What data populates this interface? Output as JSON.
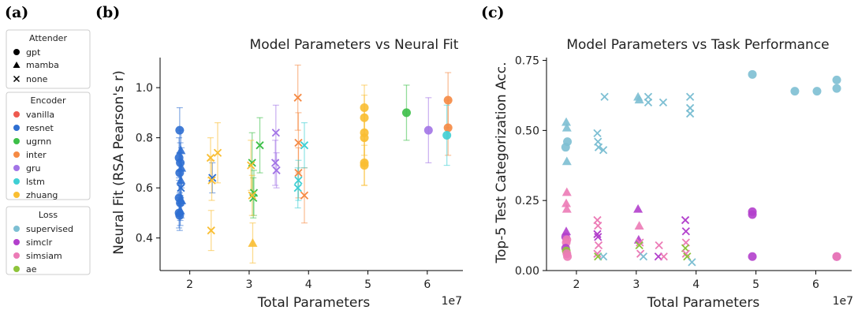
{
  "panel_letters": [
    "(a)",
    "(b)",
    "(c)"
  ],
  "colors": {
    "vanilla": "#ee5a4f",
    "resnet": "#2f6fd1",
    "ugrnn": "#3cbf48",
    "inter": "#f58a44",
    "gru": "#a274e6",
    "lstm": "#3fcfd4",
    "zhuang": "#f9be32",
    "supervised": "#7dbfd3",
    "simclr": "#b23fcc",
    "simsiam": "#ec7bb6",
    "ae": "#8ec43b"
  },
  "legend": {
    "attender": {
      "title": "Attender",
      "items": [
        {
          "label": "gpt",
          "marker": "circle"
        },
        {
          "label": "mamba",
          "marker": "triangle"
        },
        {
          "label": "none",
          "marker": "x"
        }
      ]
    },
    "encoder": {
      "title": "Encoder",
      "items": [
        {
          "label": "vanilla"
        },
        {
          "label": "resnet"
        },
        {
          "label": "ugrnn"
        },
        {
          "label": "inter"
        },
        {
          "label": "gru"
        },
        {
          "label": "lstm"
        },
        {
          "label": "zhuang"
        }
      ]
    },
    "loss": {
      "title": "Loss",
      "items": [
        {
          "label": "supervised"
        },
        {
          "label": "simclr"
        },
        {
          "label": "simsiam"
        },
        {
          "label": "ae"
        }
      ]
    }
  },
  "chart_data": [
    {
      "type": "scatter",
      "title": "Model Parameters vs Neural Fit",
      "xlabel": "Total Parameters",
      "ylabel": "Neural Fit (RSA Pearson's r)",
      "x_scale_label": "1e7",
      "xlim": [
        1.5,
        6.6
      ],
      "ylim": [
        0.27,
        1.12
      ],
      "xticks": [
        2,
        3,
        4,
        5,
        6
      ],
      "yticks": [
        0.4,
        0.6,
        0.8,
        1.0
      ],
      "ytick_labels": [
        "0.4",
        "0.6",
        "0.8",
        "1.0"
      ],
      "points": [
        {
          "x": 1.83,
          "y": 0.83,
          "err": 0.09,
          "encoder": "resnet",
          "marker": "circle"
        },
        {
          "x": 1.82,
          "y": 0.72,
          "err": 0.08,
          "encoder": "resnet",
          "marker": "circle"
        },
        {
          "x": 1.84,
          "y": 0.7,
          "err": 0.08,
          "encoder": "resnet",
          "marker": "circle"
        },
        {
          "x": 1.83,
          "y": 0.66,
          "err": 0.08,
          "encoder": "resnet",
          "marker": "circle"
        },
        {
          "x": 1.82,
          "y": 0.56,
          "err": 0.07,
          "encoder": "resnet",
          "marker": "circle"
        },
        {
          "x": 1.84,
          "y": 0.54,
          "err": 0.07,
          "encoder": "resnet",
          "marker": "circle"
        },
        {
          "x": 1.82,
          "y": 0.5,
          "err": 0.06,
          "encoder": "resnet",
          "marker": "circle"
        },
        {
          "x": 1.83,
          "y": 0.49,
          "err": 0.06,
          "encoder": "resnet",
          "marker": "circle"
        },
        {
          "x": 1.85,
          "y": 0.75,
          "err": 0.08,
          "encoder": "resnet",
          "marker": "triangle"
        },
        {
          "x": 1.86,
          "y": 0.68,
          "err": 0.08,
          "encoder": "resnet",
          "marker": "triangle"
        },
        {
          "x": 1.85,
          "y": 0.63,
          "err": 0.07,
          "encoder": "resnet",
          "marker": "triangle"
        },
        {
          "x": 1.86,
          "y": 0.55,
          "err": 0.07,
          "encoder": "resnet",
          "marker": "triangle"
        },
        {
          "x": 1.84,
          "y": 0.51,
          "err": 0.06,
          "encoder": "resnet",
          "marker": "triangle"
        },
        {
          "x": 1.85,
          "y": 0.6,
          "err": 0.07,
          "encoder": "resnet",
          "marker": "x"
        },
        {
          "x": 2.38,
          "y": 0.64,
          "err": 0.06,
          "encoder": "resnet",
          "marker": "x"
        },
        {
          "x": 2.35,
          "y": 0.72,
          "err": 0.08,
          "encoder": "zhuang",
          "marker": "x"
        },
        {
          "x": 2.37,
          "y": 0.63,
          "err": 0.08,
          "encoder": "zhuang",
          "marker": "x"
        },
        {
          "x": 2.36,
          "y": 0.43,
          "err": 0.08,
          "encoder": "zhuang",
          "marker": "x"
        },
        {
          "x": 2.47,
          "y": 0.74,
          "err": 0.12,
          "encoder": "zhuang",
          "marker": "x"
        },
        {
          "x": 3.05,
          "y": 0.7,
          "err": 0.12,
          "encoder": "ugrnn",
          "marker": "x"
        },
        {
          "x": 3.08,
          "y": 0.58,
          "err": 0.09,
          "encoder": "ugrnn",
          "marker": "x"
        },
        {
          "x": 3.07,
          "y": 0.56,
          "err": 0.08,
          "encoder": "ugrnn",
          "marker": "x"
        },
        {
          "x": 3.18,
          "y": 0.77,
          "err": 0.11,
          "encoder": "ugrnn",
          "marker": "x"
        },
        {
          "x": 3.03,
          "y": 0.69,
          "err": 0.1,
          "encoder": "zhuang",
          "marker": "x"
        },
        {
          "x": 3.05,
          "y": 0.57,
          "err": 0.08,
          "encoder": "zhuang",
          "marker": "x"
        },
        {
          "x": 3.06,
          "y": 0.38,
          "err": 0.08,
          "encoder": "zhuang",
          "marker": "triangle"
        },
        {
          "x": 3.45,
          "y": 0.82,
          "err": 0.11,
          "encoder": "gru",
          "marker": "x"
        },
        {
          "x": 3.44,
          "y": 0.7,
          "err": 0.09,
          "encoder": "gru",
          "marker": "x"
        },
        {
          "x": 3.46,
          "y": 0.67,
          "err": 0.07,
          "encoder": "gru",
          "marker": "x"
        },
        {
          "x": 3.82,
          "y": 0.96,
          "err": 0.13,
          "encoder": "inter",
          "marker": "x"
        },
        {
          "x": 3.83,
          "y": 0.78,
          "err": 0.12,
          "encoder": "inter",
          "marker": "x"
        },
        {
          "x": 3.83,
          "y": 0.66,
          "err": 0.1,
          "encoder": "inter",
          "marker": "x"
        },
        {
          "x": 3.93,
          "y": 0.57,
          "err": 0.11,
          "encoder": "inter",
          "marker": "x"
        },
        {
          "x": 3.83,
          "y": 0.63,
          "err": 0.08,
          "encoder": "lstm",
          "marker": "x"
        },
        {
          "x": 3.82,
          "y": 0.6,
          "err": 0.08,
          "encoder": "lstm",
          "marker": "x"
        },
        {
          "x": 3.93,
          "y": 0.77,
          "err": 0.09,
          "encoder": "lstm",
          "marker": "x"
        },
        {
          "x": 4.94,
          "y": 0.92,
          "err": 0.09,
          "encoder": "zhuang",
          "marker": "circle"
        },
        {
          "x": 4.94,
          "y": 0.88,
          "err": 0.09,
          "encoder": "zhuang",
          "marker": "circle"
        },
        {
          "x": 4.94,
          "y": 0.82,
          "err": 0.09,
          "encoder": "zhuang",
          "marker": "circle"
        },
        {
          "x": 4.94,
          "y": 0.8,
          "err": 0.09,
          "encoder": "zhuang",
          "marker": "circle"
        },
        {
          "x": 4.94,
          "y": 0.7,
          "err": 0.09,
          "encoder": "zhuang",
          "marker": "circle"
        },
        {
          "x": 4.94,
          "y": 0.69,
          "err": 0.08,
          "encoder": "zhuang",
          "marker": "circle"
        },
        {
          "x": 5.65,
          "y": 0.9,
          "err": 0.11,
          "encoder": "ugrnn",
          "marker": "circle"
        },
        {
          "x": 6.02,
          "y": 0.83,
          "err": 0.13,
          "encoder": "gru",
          "marker": "circle"
        },
        {
          "x": 6.35,
          "y": 0.95,
          "err": 0.11,
          "encoder": "inter",
          "marker": "circle"
        },
        {
          "x": 6.35,
          "y": 0.84,
          "err": 0.11,
          "encoder": "inter",
          "marker": "circle"
        },
        {
          "x": 6.33,
          "y": 0.81,
          "err": 0.12,
          "encoder": "lstm",
          "marker": "circle"
        }
      ]
    },
    {
      "type": "scatter",
      "title": "Model Parameters vs Task Performance",
      "xlabel": "Total Parameters",
      "ylabel": "Top-5 Test Categorization Acc.",
      "x_scale_label": "1e7",
      "xlim": [
        1.5,
        6.6
      ],
      "ylim": [
        0.0,
        0.76
      ],
      "xticks": [
        2,
        3,
        4,
        5,
        6
      ],
      "yticks": [
        0.0,
        0.25,
        0.5,
        0.75
      ],
      "ytick_labels": [
        "0.00",
        "0.25",
        "0.50",
        "0.75"
      ],
      "points": [
        {
          "x": 1.83,
          "y": 0.53,
          "loss": "supervised",
          "marker": "triangle"
        },
        {
          "x": 1.84,
          "y": 0.51,
          "loss": "supervised",
          "marker": "triangle"
        },
        {
          "x": 1.85,
          "y": 0.46,
          "loss": "supervised",
          "marker": "circle"
        },
        {
          "x": 1.82,
          "y": 0.44,
          "loss": "supervised",
          "marker": "circle"
        },
        {
          "x": 1.84,
          "y": 0.39,
          "loss": "supervised",
          "marker": "triangle"
        },
        {
          "x": 1.84,
          "y": 0.28,
          "loss": "simsiam",
          "marker": "triangle"
        },
        {
          "x": 1.83,
          "y": 0.24,
          "loss": "simsiam",
          "marker": "triangle"
        },
        {
          "x": 1.84,
          "y": 0.22,
          "loss": "simsiam",
          "marker": "triangle"
        },
        {
          "x": 1.83,
          "y": 0.14,
          "loss": "simclr",
          "marker": "triangle"
        },
        {
          "x": 1.82,
          "y": 0.12,
          "loss": "simclr",
          "marker": "circle"
        },
        {
          "x": 1.84,
          "y": 0.11,
          "loss": "simsiam",
          "marker": "circle"
        },
        {
          "x": 1.83,
          "y": 0.1,
          "loss": "simsiam",
          "marker": "circle"
        },
        {
          "x": 1.82,
          "y": 0.08,
          "loss": "simclr",
          "marker": "circle"
        },
        {
          "x": 1.83,
          "y": 0.07,
          "loss": "ae",
          "marker": "circle"
        },
        {
          "x": 1.84,
          "y": 0.06,
          "loss": "simsiam",
          "marker": "circle"
        },
        {
          "x": 1.85,
          "y": 0.05,
          "loss": "simsiam",
          "marker": "circle"
        },
        {
          "x": 2.35,
          "y": 0.49,
          "loss": "supervised",
          "marker": "x"
        },
        {
          "x": 2.36,
          "y": 0.46,
          "loss": "supervised",
          "marker": "x"
        },
        {
          "x": 2.37,
          "y": 0.44,
          "loss": "supervised",
          "marker": "x"
        },
        {
          "x": 2.45,
          "y": 0.43,
          "loss": "supervised",
          "marker": "x"
        },
        {
          "x": 2.47,
          "y": 0.62,
          "loss": "supervised",
          "marker": "x"
        },
        {
          "x": 2.35,
          "y": 0.18,
          "loss": "simsiam",
          "marker": "x"
        },
        {
          "x": 2.36,
          "y": 0.16,
          "loss": "simsiam",
          "marker": "x"
        },
        {
          "x": 2.35,
          "y": 0.13,
          "loss": "simclr",
          "marker": "x"
        },
        {
          "x": 2.36,
          "y": 0.12,
          "loss": "simclr",
          "marker": "x"
        },
        {
          "x": 2.37,
          "y": 0.09,
          "loss": "simsiam",
          "marker": "x"
        },
        {
          "x": 2.35,
          "y": 0.06,
          "loss": "simsiam",
          "marker": "x"
        },
        {
          "x": 2.36,
          "y": 0.05,
          "loss": "ae",
          "marker": "x"
        },
        {
          "x": 2.45,
          "y": 0.05,
          "loss": "supervised",
          "marker": "x"
        },
        {
          "x": 3.03,
          "y": 0.62,
          "loss": "supervised",
          "marker": "triangle"
        },
        {
          "x": 3.05,
          "y": 0.61,
          "loss": "supervised",
          "marker": "triangle"
        },
        {
          "x": 3.2,
          "y": 0.62,
          "loss": "supervised",
          "marker": "x"
        },
        {
          "x": 3.2,
          "y": 0.6,
          "loss": "supervised",
          "marker": "x"
        },
        {
          "x": 3.03,
          "y": 0.22,
          "loss": "simclr",
          "marker": "triangle"
        },
        {
          "x": 3.05,
          "y": 0.16,
          "loss": "simsiam",
          "marker": "triangle"
        },
        {
          "x": 3.04,
          "y": 0.11,
          "loss": "simclr",
          "marker": "triangle"
        },
        {
          "x": 3.06,
          "y": 0.1,
          "loss": "simsiam",
          "marker": "x"
        },
        {
          "x": 3.05,
          "y": 0.09,
          "loss": "ae",
          "marker": "x"
        },
        {
          "x": 3.07,
          "y": 0.06,
          "loss": "simsiam",
          "marker": "x"
        },
        {
          "x": 3.12,
          "y": 0.05,
          "loss": "supervised",
          "marker": "x"
        },
        {
          "x": 3.45,
          "y": 0.6,
          "loss": "supervised",
          "marker": "x"
        },
        {
          "x": 3.38,
          "y": 0.09,
          "loss": "simsiam",
          "marker": "x"
        },
        {
          "x": 3.37,
          "y": 0.05,
          "loss": "simclr",
          "marker": "x"
        },
        {
          "x": 3.46,
          "y": 0.05,
          "loss": "simsiam",
          "marker": "x"
        },
        {
          "x": 3.9,
          "y": 0.62,
          "loss": "supervised",
          "marker": "x"
        },
        {
          "x": 3.9,
          "y": 0.58,
          "loss": "supervised",
          "marker": "x"
        },
        {
          "x": 3.9,
          "y": 0.56,
          "loss": "supervised",
          "marker": "x"
        },
        {
          "x": 3.82,
          "y": 0.18,
          "loss": "simclr",
          "marker": "x"
        },
        {
          "x": 3.83,
          "y": 0.14,
          "loss": "simclr",
          "marker": "x"
        },
        {
          "x": 3.83,
          "y": 0.1,
          "loss": "simsiam",
          "marker": "x"
        },
        {
          "x": 3.82,
          "y": 0.08,
          "loss": "ae",
          "marker": "x"
        },
        {
          "x": 3.83,
          "y": 0.06,
          "loss": "simsiam",
          "marker": "x"
        },
        {
          "x": 3.85,
          "y": 0.05,
          "loss": "ae",
          "marker": "x"
        },
        {
          "x": 3.93,
          "y": 0.03,
          "loss": "supervised",
          "marker": "x"
        },
        {
          "x": 4.94,
          "y": 0.7,
          "loss": "supervised",
          "marker": "circle"
        },
        {
          "x": 4.94,
          "y": 0.21,
          "loss": "simclr",
          "marker": "circle"
        },
        {
          "x": 4.94,
          "y": 0.2,
          "loss": "simclr",
          "marker": "circle"
        },
        {
          "x": 4.94,
          "y": 0.05,
          "loss": "simclr",
          "marker": "circle"
        },
        {
          "x": 5.65,
          "y": 0.64,
          "loss": "supervised",
          "marker": "circle"
        },
        {
          "x": 6.02,
          "y": 0.64,
          "loss": "supervised",
          "marker": "circle"
        },
        {
          "x": 6.35,
          "y": 0.68,
          "loss": "supervised",
          "marker": "circle"
        },
        {
          "x": 6.35,
          "y": 0.65,
          "loss": "supervised",
          "marker": "circle"
        },
        {
          "x": 6.35,
          "y": 0.05,
          "loss": "simclr",
          "marker": "circle"
        },
        {
          "x": 6.35,
          "y": 0.05,
          "loss": "simsiam",
          "marker": "circle"
        }
      ]
    }
  ]
}
